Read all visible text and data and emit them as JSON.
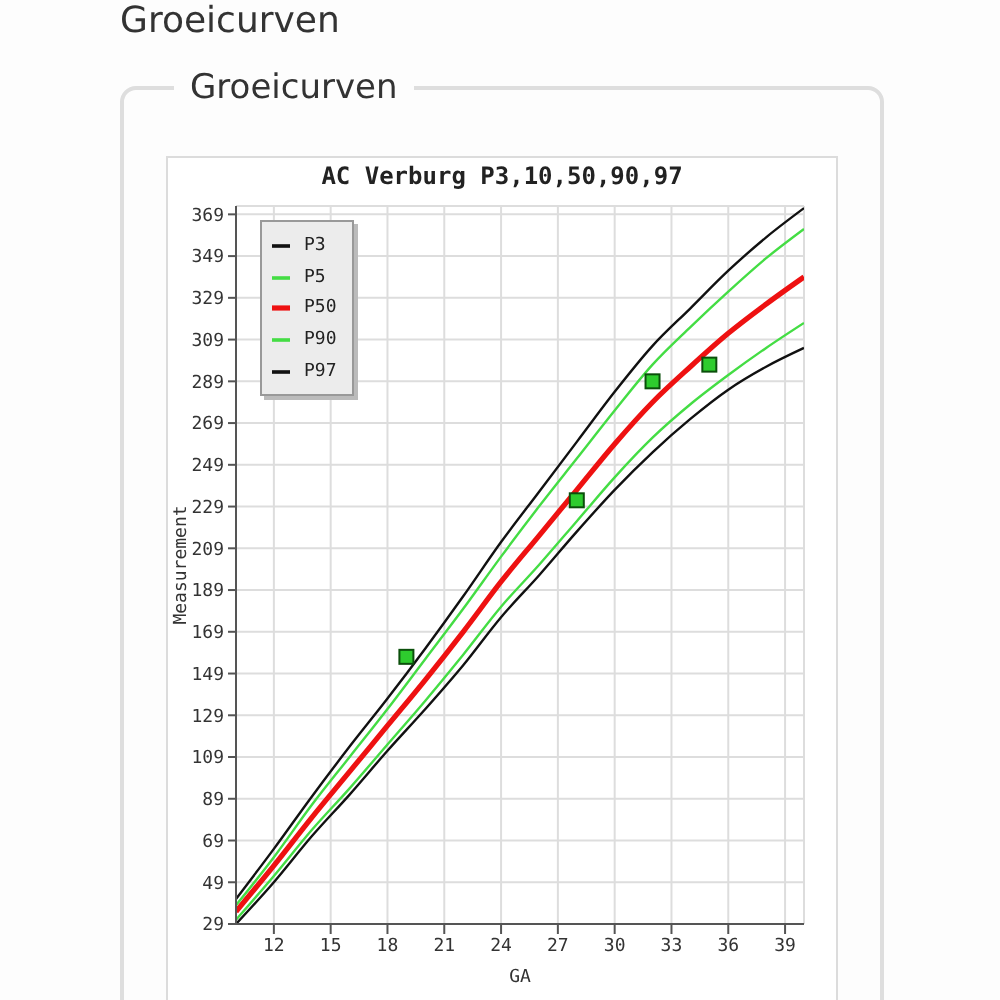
{
  "chart_data": {
    "type": "line",
    "title": "AC Verburg P3,10,50,90,97",
    "xlabel": "GA",
    "ylabel": "Measurement",
    "annotations": [
      "Groeicurven",
      "Groeicurven"
    ],
    "x": [
      10,
      12,
      14,
      16,
      18,
      20,
      22,
      24,
      26,
      28,
      30,
      32,
      34,
      36,
      38,
      40
    ],
    "series": [
      {
        "name": "P3",
        "color": "#111111",
        "values": [
          29,
          49,
          71,
          91,
          112,
          132,
          153,
          176,
          196,
          217,
          237,
          255,
          271,
          285,
          296,
          305
        ]
      },
      {
        "name": "P5",
        "color": "#44dd44",
        "values": [
          31,
          52,
          74,
          94,
          115,
          136,
          158,
          181,
          201,
          222,
          243,
          262,
          278,
          292,
          305,
          317
        ]
      },
      {
        "name": "P50",
        "color": "#ee1111",
        "values": [
          35,
          57,
          80,
          102,
          124,
          146,
          169,
          193,
          215,
          237,
          259,
          279,
          296,
          312,
          326,
          339
        ]
      },
      {
        "name": "P90",
        "color": "#44dd44",
        "values": [
          38,
          61,
          86,
          109,
          132,
          156,
          180,
          205,
          229,
          252,
          275,
          297,
          315,
          332,
          348,
          362
        ]
      },
      {
        "name": "P97",
        "color": "#111111",
        "values": [
          41,
          65,
          90,
          114,
          137,
          161,
          186,
          212,
          236,
          260,
          284,
          306,
          324,
          342,
          358,
          372
        ]
      },
      {
        "type": "scatter",
        "color": "#2ecc2e",
        "marker": "square",
        "x": [
          19,
          28,
          32,
          35
        ],
        "values": [
          157,
          232,
          289,
          297
        ]
      }
    ],
    "xlim": [
      10,
      40
    ],
    "xticks": [
      12,
      15,
      18,
      21,
      24,
      27,
      30,
      33,
      36,
      39
    ],
    "ylim": [
      29,
      373
    ],
    "yticks": [
      29,
      49,
      69,
      89,
      109,
      129,
      149,
      169,
      189,
      209,
      229,
      249,
      269,
      289,
      309,
      329,
      349,
      369
    ],
    "grid": true,
    "legend": "top left"
  }
}
